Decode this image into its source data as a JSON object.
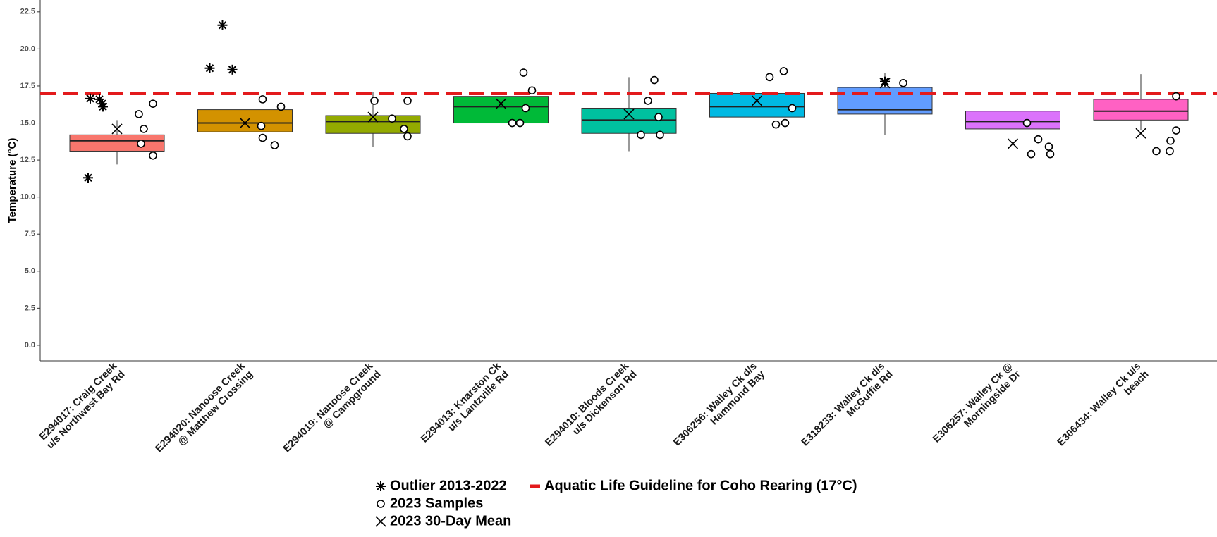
{
  "chart_data": {
    "type": "box",
    "y_label": "Temperature (°C)",
    "categories": [
      "E294017: Craig Creek\nu/s Northwest Bay Rd",
      "E294020: Nanoose Creek\n@ Matthew Crossing",
      "E294019: Nanoose Creek\n@ Campground",
      "E294013: Knarston Ck\nu/s Lantzville Rd",
      "E294010: Bloods Creek\nu/s Dickenson Rd",
      "E306256: Walley Ck d/s\nHammond Bay",
      "E318233: Walley Ck d/s\nMcGuffie Rd",
      "E306257: Walley Ck @\nMorningside Dr",
      "E306434: Walley Ck u/s\nbeach"
    ],
    "colors": [
      "#F8766D",
      "#D39200",
      "#93AA00",
      "#00BA38",
      "#00C19F",
      "#00B9E3",
      "#619CFF",
      "#DB72FB",
      "#FF61C3"
    ],
    "boxes": [
      {
        "low": 12.2,
        "q1": 13.1,
        "median": 13.8,
        "q3": 14.2,
        "high": 15.2
      },
      {
        "low": 12.8,
        "q1": 14.4,
        "median": 15.0,
        "q3": 15.9,
        "high": 18.0
      },
      {
        "low": 13.4,
        "q1": 14.3,
        "median": 15.1,
        "q3": 15.5,
        "high": 17.1
      },
      {
        "low": 13.8,
        "q1": 15.0,
        "median": 16.1,
        "q3": 16.8,
        "high": 18.7
      },
      {
        "low": 13.1,
        "q1": 14.3,
        "median": 15.2,
        "q3": 16.0,
        "high": 18.1
      },
      {
        "low": 13.9,
        "q1": 15.4,
        "median": 16.1,
        "q3": 17.0,
        "high": 19.2
      },
      {
        "low": 14.2,
        "q1": 15.6,
        "median": 15.9,
        "q3": 17.4,
        "high": 18.4
      },
      {
        "low": 14.0,
        "q1": 14.6,
        "median": 15.1,
        "q3": 15.8,
        "high": 16.6
      },
      {
        "low": 14.5,
        "q1": 15.2,
        "median": 15.8,
        "q3": 16.6,
        "high": 18.3
      }
    ],
    "outliers": [
      [
        16.65,
        16.6,
        16.3,
        16.1,
        11.3
      ],
      [
        18.7,
        21.6,
        18.6
      ],
      [],
      [],
      [],
      [],
      [
        17.8
      ],
      [],
      []
    ],
    "samples": [
      [
        15.6,
        16.3,
        14.6,
        13.6,
        12.8
      ],
      [
        16.6,
        16.1,
        14.8,
        14.0,
        13.5
      ],
      [
        16.5,
        16.5,
        15.3,
        14.6,
        14.1
      ],
      [
        18.4,
        17.2,
        16.0,
        15.0,
        15.0
      ],
      [
        17.9,
        16.5,
        15.4,
        14.2,
        14.2
      ],
      [
        18.1,
        18.5,
        16.0,
        14.9,
        15.0
      ],
      [
        17.7
      ],
      [
        15.0,
        13.9,
        13.4,
        12.9,
        12.9
      ],
      [
        16.8,
        14.5,
        13.8,
        13.1,
        13.1
      ]
    ],
    "means": [
      14.6,
      15.0,
      15.4,
      16.3,
      15.6,
      16.5,
      17.7,
      13.6,
      14.3
    ],
    "guideline": {
      "value": 17,
      "label": "Aquatic Life Guideline for Coho Rearing (17°C)",
      "color": "#e31a1c"
    },
    "legend": [
      "Outlier 2013-2022",
      "2023 Samples",
      "2023 30-Day Mean"
    ],
    "ylim": [
      -1.05,
      23.3
    ],
    "yticks": [
      {
        "value": 0,
        "label": "0.0"
      },
      {
        "value": 2.5,
        "label": "2.5"
      },
      {
        "value": 5,
        "label": "5.0"
      },
      {
        "value": 7.5,
        "label": "7.5"
      },
      {
        "value": 10,
        "label": "10.0"
      },
      {
        "value": 12.5,
        "label": "12.5"
      },
      {
        "value": 15,
        "label": "15.0"
      },
      {
        "value": 17.5,
        "label": "17.5"
      },
      {
        "value": 20,
        "label": "20.0"
      },
      {
        "value": 22.5,
        "label": "22.5"
      }
    ]
  }
}
